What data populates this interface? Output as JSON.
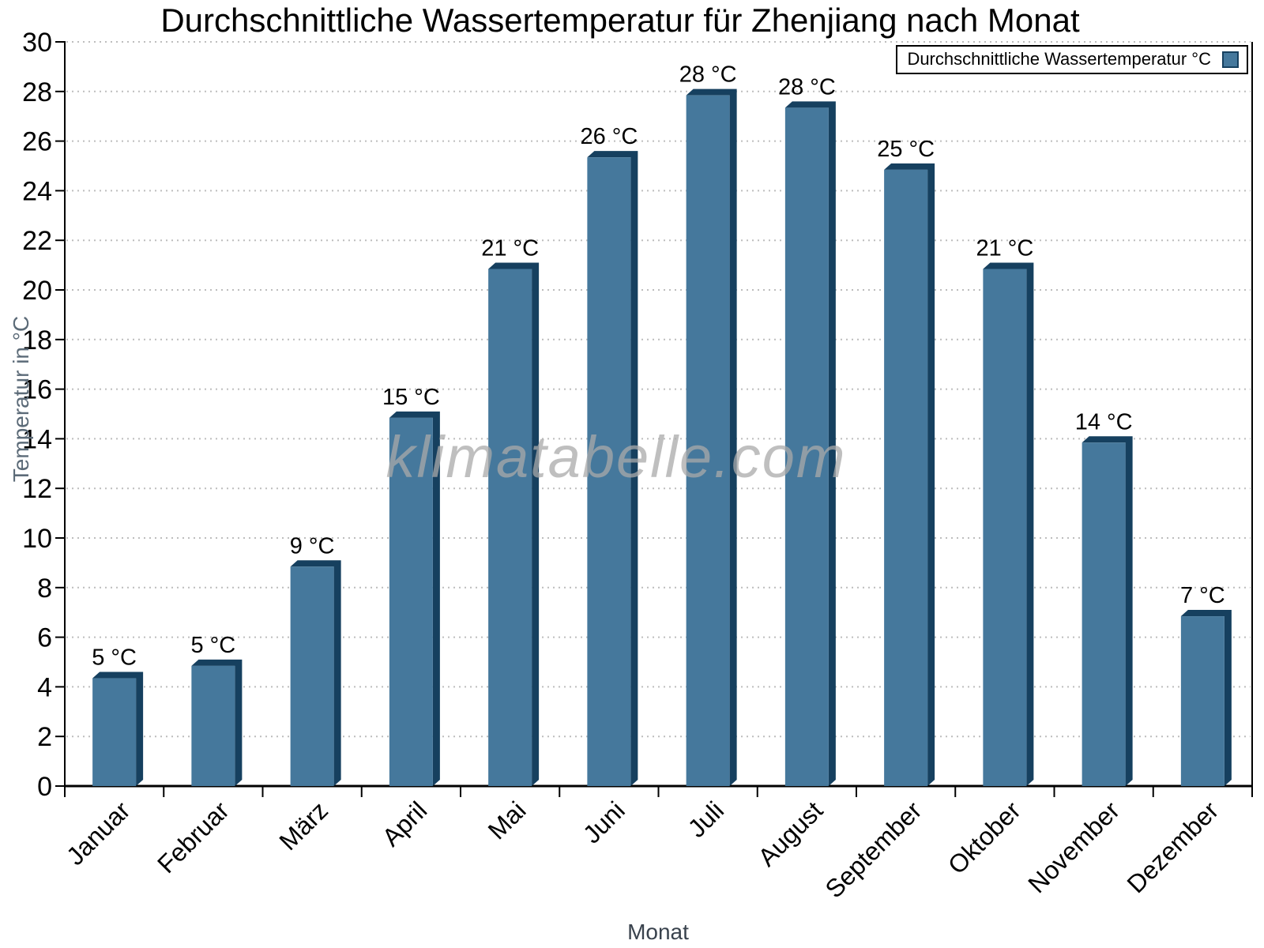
{
  "watermark": "klimatabelle.com",
  "legend": {
    "label": "Durchschnittliche Wassertemperatur °C"
  },
  "chart_data": {
    "type": "bar",
    "title": "Durchschnittliche Wassertemperatur für Zhenjiang nach Monat",
    "xlabel": "Monat",
    "ylabel": "Temperatur in °C",
    "categories": [
      "Januar",
      "Februar",
      "März",
      "April",
      "Mai",
      "Juni",
      "Juli",
      "August",
      "September",
      "Oktober",
      "November",
      "Dezember"
    ],
    "values": [
      4.6,
      5.1,
      9.1,
      15.1,
      21.1,
      25.6,
      28.1,
      27.6,
      25.1,
      21.1,
      14.1,
      7.1
    ],
    "value_labels": [
      "5 °C",
      "5 °C",
      "9 °C",
      "15 °C",
      "21 °C",
      "26 °C",
      "28 °C",
      "28 °C",
      "25 °C",
      "21 °C",
      "14 °C",
      "7 °C"
    ],
    "series_name": "Durchschnittliche Wassertemperatur °C",
    "ylim": [
      0,
      30
    ],
    "ytick_step": 2,
    "grid": true,
    "legend_position": "top-right",
    "bar_color": "#45789C",
    "bar_shade_color": "#16405F",
    "grid_color": "#bdbdbd",
    "axis_color": "#000000",
    "tick_label_color": "#000000",
    "value_label_color": "#000000",
    "ylabel_color": "#5c6b78",
    "xlabel_color": "#39424d"
  }
}
